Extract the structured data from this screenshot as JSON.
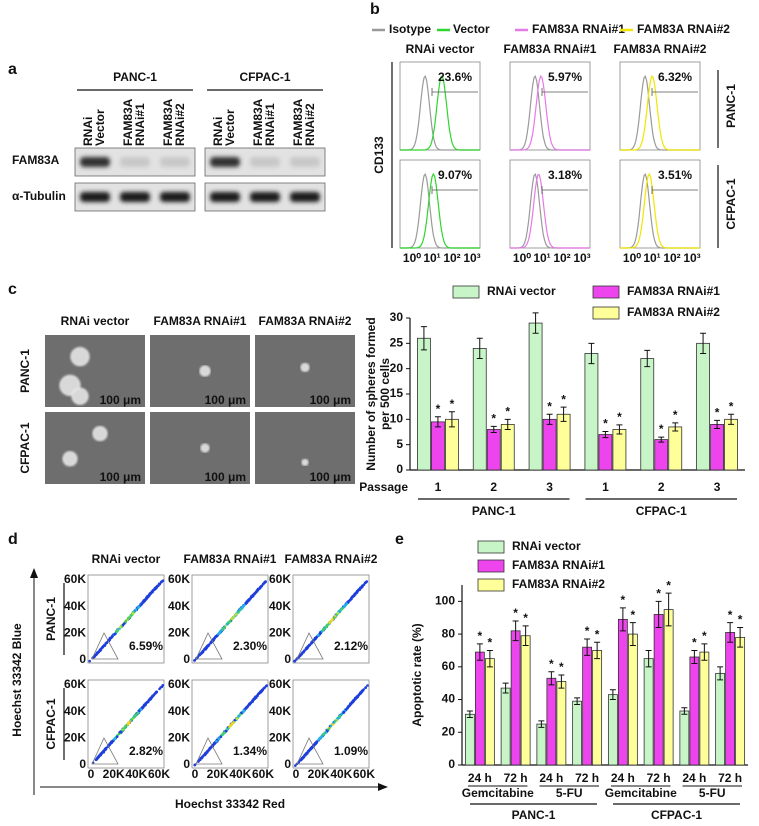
{
  "panel_labels": {
    "a": "a",
    "b": "b",
    "c": "c",
    "d": "d",
    "e": "e"
  },
  "western_blot": {
    "cell_lines": [
      "PANC-1",
      "CFPAC-1"
    ],
    "lanes": [
      [
        "RNAi",
        "Vector"
      ],
      [
        "FAM83A",
        "RNAi#1"
      ],
      [
        "FAM83A",
        "RNAi#2"
      ]
    ],
    "proteins": [
      "FAM83A",
      "α-Tubulin"
    ]
  },
  "flow_cd133": {
    "legend": [
      {
        "name": "Isotype",
        "color": "#9a9a9a"
      },
      {
        "name": "Vector",
        "color": "#2ed62e"
      },
      {
        "name": "FAM83A RNAi#1",
        "color": "#e67ae6"
      },
      {
        "name": "FAM83A RNAi#2",
        "color": "#f0e600"
      }
    ],
    "columns": [
      "RNAi vector",
      "FAM83A RNAi#1",
      "FAM83A RNAi#2"
    ],
    "rows": [
      "PANC-1",
      "CFPAC-1"
    ],
    "y_label": "CD133",
    "x_ticks": [
      "10⁰",
      "10¹",
      "10²",
      "10³"
    ],
    "percentages": [
      [
        "23.6%",
        "5.97%",
        "6.32%"
      ],
      [
        "9.07%",
        "3.18%",
        "3.51%"
      ]
    ]
  },
  "sphere_images": {
    "columns": [
      "RNAi vector",
      "FAM83A RNAi#1",
      "FAM83A RNAi#2"
    ],
    "rows": [
      "PANC-1",
      "CFPAC-1"
    ],
    "scale_bar": "100 μm"
  },
  "side_population": {
    "columns": [
      "RNAi vector",
      "FAM83A RNAi#1",
      "FAM83A RNAi#2"
    ],
    "rows": [
      "PANC-1",
      "CFPAC-1"
    ],
    "y_label": "Hoechst 33342 Blue",
    "x_label": "Hoechst 33342 Red",
    "ticks": [
      "0",
      "20K",
      "40K",
      "60K"
    ],
    "percentages": [
      [
        "6.59%",
        "2.30%",
        "2.12%"
      ],
      [
        "2.82%",
        "1.34%",
        "1.09%"
      ]
    ]
  },
  "chart_data": [
    {
      "type": "bar",
      "categories": [
        "1",
        "2",
        "3",
        "1",
        "2",
        "3"
      ],
      "x_label": "Passage",
      "group_labels": [
        "PANC-1",
        "CFPAC-1"
      ],
      "y_label": [
        "Number of spheres formed",
        "per 500 cells"
      ],
      "ylim": [
        0,
        30
      ],
      "yticks": [
        0,
        5,
        10,
        15,
        20,
        25,
        30
      ],
      "legend": "top",
      "significance_marker": "*",
      "series": [
        {
          "name": "RNAi vector",
          "color": "#c8f5c8",
          "values": [
            26,
            24,
            29,
            23,
            22,
            25
          ],
          "errors": [
            2.3,
            2,
            2,
            2,
            1.6,
            2
          ]
        },
        {
          "name": "FAM83A RNAi#1",
          "color": "#ee44ee",
          "values": [
            9.5,
            8,
            10,
            7,
            6,
            9
          ],
          "errors": [
            1,
            0.6,
            1,
            0.6,
            0.5,
            0.8
          ]
        },
        {
          "name": "FAM83A RNAi#2",
          "color": "#ffff99",
          "values": [
            10,
            9,
            11,
            8,
            8.5,
            10
          ],
          "errors": [
            1.5,
            1,
            1.4,
            0.9,
            0.8,
            1
          ]
        }
      ]
    },
    {
      "type": "bar",
      "categories": [
        "24 h",
        "72 h",
        "24 h",
        "72 h",
        "24 h",
        "72 h",
        "24 h",
        "72 h"
      ],
      "subgroup_labels": [
        "Gemcitabine",
        "5-FU",
        "Gemcitabine",
        "5-FU"
      ],
      "group_labels": [
        "PANC-1",
        "CFPAC-1"
      ],
      "y_label": "Apoptotic rate (%)",
      "ylim": [
        0,
        110
      ],
      "yticks": [
        0,
        20,
        40,
        60,
        80,
        100
      ],
      "legend": "top-left",
      "significance_marker": "*",
      "series": [
        {
          "name": "RNAi vector",
          "color": "#c8f5c8",
          "values": [
            31,
            47,
            25,
            39,
            43,
            65,
            33,
            56
          ],
          "errors": [
            2,
            3,
            2,
            2,
            3,
            5,
            2,
            4
          ]
        },
        {
          "name": "FAM83A RNAi#1",
          "color": "#ee44ee",
          "values": [
            69,
            82,
            53,
            72,
            89,
            92,
            66,
            81
          ],
          "errors": [
            5,
            6,
            4,
            5,
            7,
            8,
            4,
            6
          ]
        },
        {
          "name": "FAM83A RNAi#2",
          "color": "#ffff99",
          "values": [
            65,
            79,
            51,
            70,
            80,
            95,
            69,
            78
          ],
          "errors": [
            5,
            6,
            4,
            5,
            7,
            10,
            5,
            6
          ]
        }
      ]
    }
  ]
}
